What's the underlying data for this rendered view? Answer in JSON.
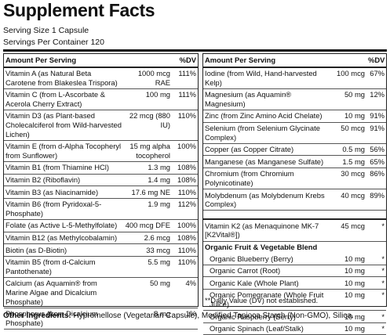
{
  "title": "Supplement Facts",
  "serving_size": "Serving Size 1 Capsule",
  "servings_per_container": "Servings Per Container 120",
  "left": {
    "header": {
      "amount": "Amount Per Serving",
      "dv": "%DV"
    },
    "rows": [
      {
        "name": "Vitamin A (as Natural Beta Carotene from Blakeslea Trispora)",
        "amount": "1000 mcg RAE",
        "dv": "111%"
      },
      {
        "name": "Vitamin C (from L-Ascorbate & Acerola Cherry Extract)",
        "amount": "100 mg",
        "dv": "111%"
      },
      {
        "name": "Vitamin D3 (as Plant-based Cholecalciferol from Wild-harvested Lichen)",
        "amount": "22 mcg (880 IU)",
        "dv": "110%"
      },
      {
        "name": "Vitamin E (from d-Alpha Tocopheryl from Sunflower)",
        "amount": "15 mg alpha tocopherol",
        "dv": "100%"
      },
      {
        "name": "Vitamin B1 (from Thiamine HCl)",
        "amount": "1.3 mg",
        "dv": "108%"
      },
      {
        "name": "Vitamin B2 (Riboflavin)",
        "amount": "1.4 mg",
        "dv": "108%"
      },
      {
        "name": "Vitamin B3 (as Niacinamide)",
        "amount": "17.6 mg NE",
        "dv": "110%"
      },
      {
        "name": "Vitamin B6 (from Pyridoxal-5-Phosphate)",
        "amount": "1.9 mg",
        "dv": "112%"
      },
      {
        "name": "Folate (as Active L-5-Methylfolate)",
        "amount": "400 mcg DFE",
        "dv": "100%"
      },
      {
        "name": "Vitamin B12 (as Methylcobalamin)",
        "amount": "2.6 mcg",
        "dv": "108%"
      },
      {
        "name": "Biotin (as D-Biotin)",
        "amount": "33 mcg",
        "dv": "110%"
      },
      {
        "name": "Vitamin B5 (from d-Calcium Pantothenate)",
        "amount": "5.5 mg",
        "dv": "110%"
      },
      {
        "name": "Calcium (as Aquamin® from Marine Algae and Dicalcium Phosphate)",
        "amount": "50 mg",
        "dv": "4%"
      },
      {
        "name": "Phosphorus (from Dicalcium Phosphate)",
        "amount": "8 mg",
        "dv": "1%"
      }
    ]
  },
  "right": {
    "header": {
      "amount": "Amount Per Serving",
      "dv": "%DV"
    },
    "rows": [
      {
        "name": "Iodine (from Wild, Hand-harvested Kelp)",
        "amount": "100 mcg",
        "dv": "67%"
      },
      {
        "name": "Magnesium (as Aquamin® Magnesium)",
        "amount": "50 mg",
        "dv": "12%"
      },
      {
        "name": "Zinc (from Zinc Amino Acid Chelate)",
        "amount": "10 mg",
        "dv": "91%"
      },
      {
        "name": "Selenium (from Selenium Glycinate Complex)",
        "amount": "50 mcg",
        "dv": "91%"
      },
      {
        "name": "Copper (as Copper Citrate)",
        "amount": "0.5 mg",
        "dv": "56%"
      },
      {
        "name": "Manganese (as Manganese Sulfate)",
        "amount": "1.5 mg",
        "dv": "65%"
      },
      {
        "name": "Chromium (from Chromium Polynicotinate)",
        "amount": "30 mcg",
        "dv": "86%"
      },
      {
        "name": "Molybdenum (as Molybdenum Krebs Complex)",
        "amount": "40 mcg",
        "dv": "89%"
      }
    ],
    "extra_row": {
      "name": "Vitamin K2 (as Menaquinone MK-7 [K2Vital®])",
      "amount": "45 mcg",
      "dv": "*"
    },
    "blend": {
      "title": "Organic Fruit & Vegetable Blend",
      "items": [
        {
          "name": "Organic Blueberry (Berry)",
          "amount": "10 mg",
          "dv": "*"
        },
        {
          "name": "Organic Carrot (Root)",
          "amount": "10 mg",
          "dv": "*"
        },
        {
          "name": "Organic Kale (Whole Plant)",
          "amount": "10 mg",
          "dv": "*"
        },
        {
          "name": "Organic Pomegranate (Whole Fruit Juice)",
          "amount": "10 mg",
          "dv": "*"
        },
        {
          "name": "Organic Raspberry (Berry)",
          "amount": "10 mg",
          "dv": "*"
        },
        {
          "name": "Organic  Spinach (Leaf/Stalk)",
          "amount": "10 mg",
          "dv": "*"
        }
      ]
    },
    "footnote": "**Daily Value (DV) not established."
  },
  "other_ingredients": {
    "label": "Other Ingredients:",
    "text": "Hypromellose (Vegetarian Capsule), Modified Tapioca Starch (Non-GMO), Silica."
  }
}
